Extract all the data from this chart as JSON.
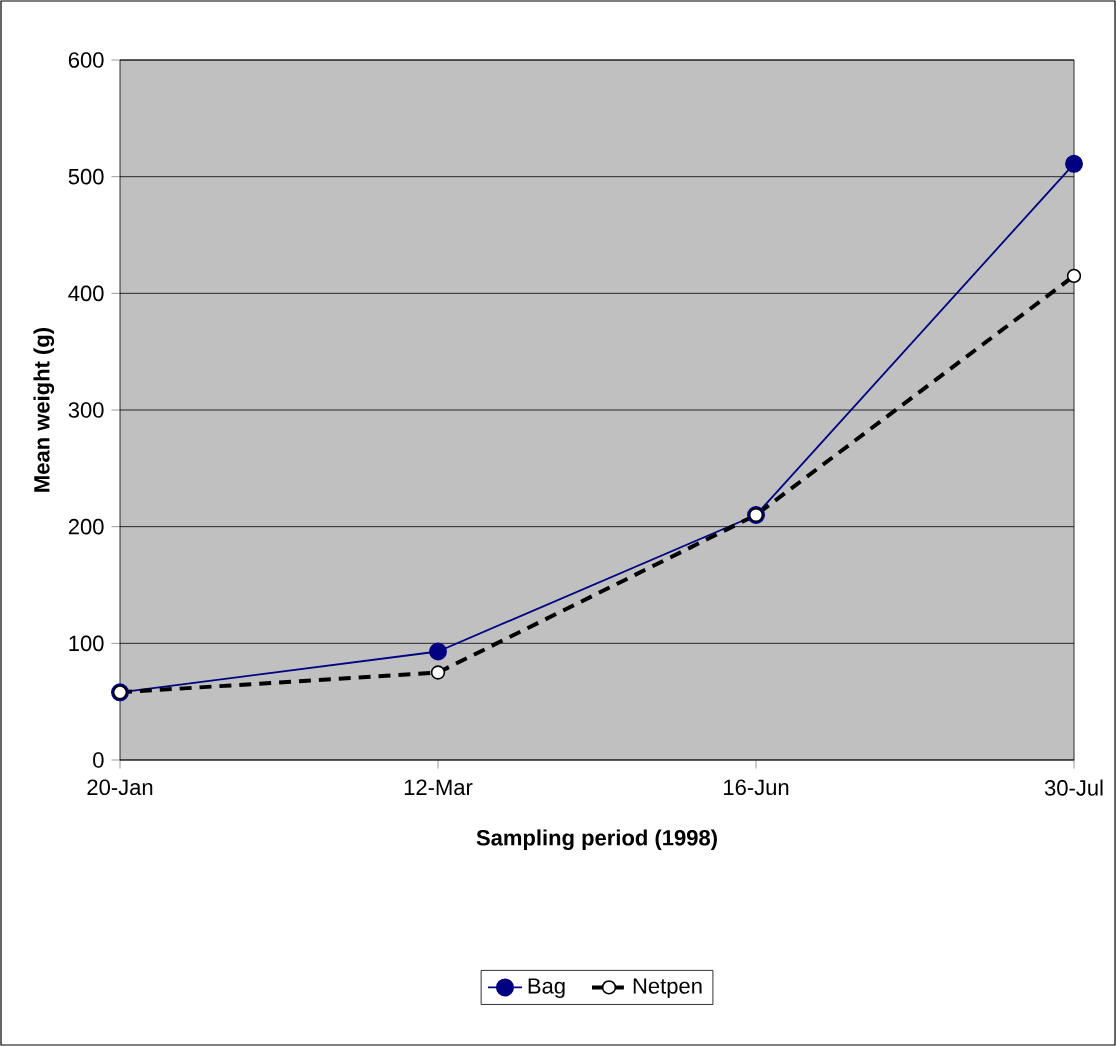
{
  "chart_data": {
    "type": "line",
    "xlabel": "Sampling period (1998)",
    "ylabel": "Mean weight (g)",
    "categories": [
      "20-Jan",
      "12-Mar",
      "16-Jun",
      "30-Jul"
    ],
    "series": [
      {
        "name": "Bag",
        "color": "#000080",
        "values": [
          58,
          93,
          210,
          511
        ],
        "marker": "circle",
        "line_style": "solid"
      },
      {
        "name": "Netpen",
        "color": "#000000",
        "values": [
          58,
          75,
          210,
          415
        ],
        "marker": "circle",
        "line_style": "dashed"
      }
    ],
    "ylim": [
      0,
      600
    ],
    "yticks": [
      0,
      100,
      200,
      300,
      400,
      500,
      600
    ],
    "grid": "y",
    "legend": "bottom"
  }
}
